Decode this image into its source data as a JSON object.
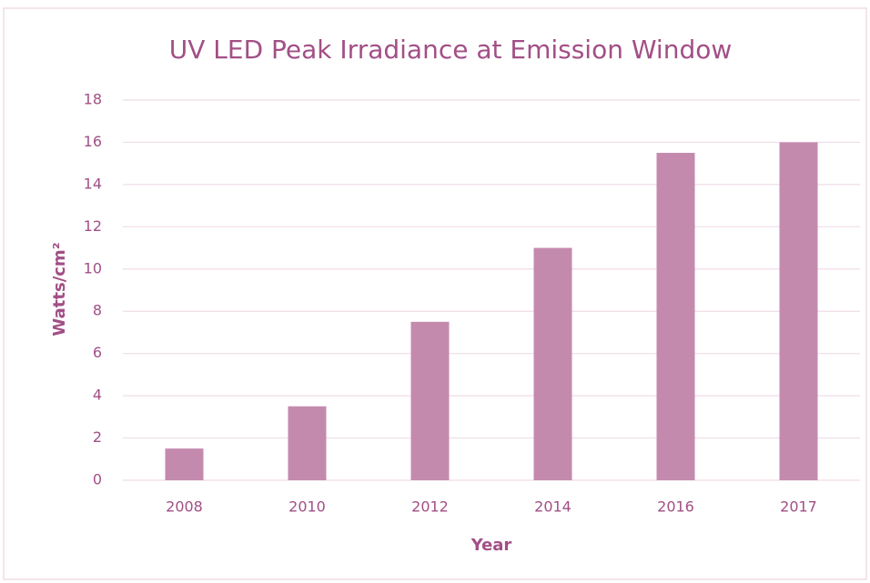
{
  "chart_data": {
    "type": "bar",
    "title": "UV LED Peak Irradiance at Emission Window",
    "x_label": "Year",
    "y_label": "Watts/cm²",
    "categories": [
      "2008",
      "2010",
      "2012",
      "2014",
      "2016",
      "2017"
    ],
    "values": [
      1.5,
      3.5,
      7.5,
      11,
      15.5,
      16
    ],
    "color": "#c48aae",
    "ylim": [
      0,
      18
    ],
    "yticks": [
      0,
      2,
      4,
      6,
      8,
      10,
      12,
      14,
      16,
      18
    ],
    "grid": true
  }
}
